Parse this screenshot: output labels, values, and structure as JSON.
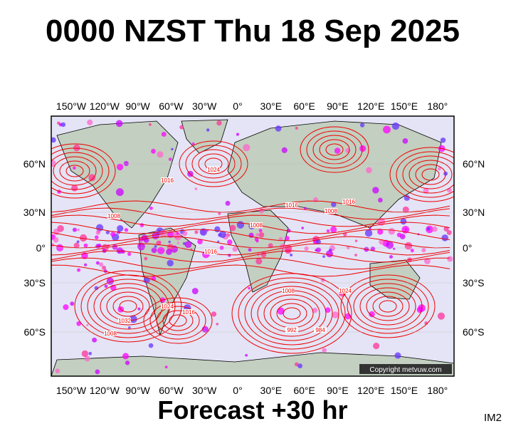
{
  "title": "0000 NZST Thu 18 Sep 2025",
  "longitudes": [
    "150°W",
    "120°W",
    "90°W",
    "60°W",
    "30°W",
    "0°",
    "30°E",
    "60°E",
    "90°E",
    "120°E",
    "150°E",
    "180°"
  ],
  "latitudes": [
    "60°N",
    "30°N",
    "0°",
    "30°S",
    "60°S"
  ],
  "isobar_labels": [
    "1008",
    "1016",
    "1024",
    "1016",
    "1008",
    "1016",
    "1008",
    "1016",
    "1024",
    "1008",
    "992",
    "984",
    "1032",
    "1024",
    "1016",
    "1008"
  ],
  "copyright": "Copyright metvuw.com",
  "footer": "Forecast +30 hr",
  "corner_label": "IM2"
}
